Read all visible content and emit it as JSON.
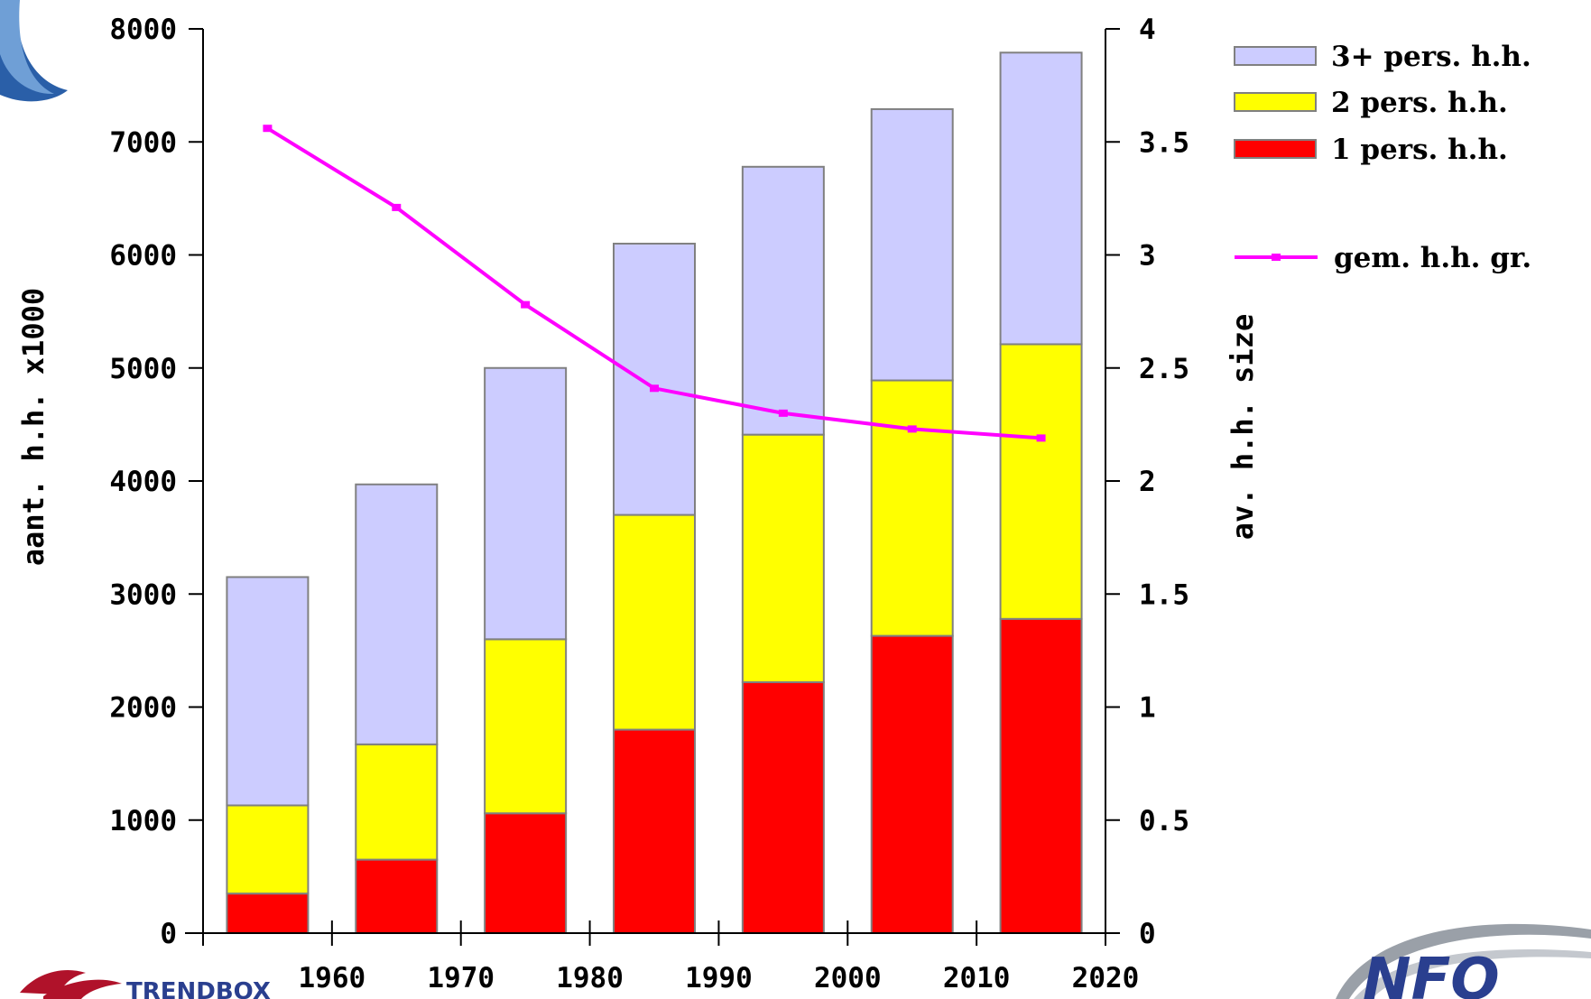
{
  "colors": {
    "p1": "#ff0000",
    "p2": "#ffff00",
    "p3": "#ccccff",
    "line": "#ff00ff",
    "bar_stroke": "#808080",
    "axis": "#000000"
  },
  "logos": {
    "bottom_right_text": "NFO",
    "bottom_left_text": "TRENDBOX"
  },
  "chart_data": {
    "type": "bar",
    "stacked": true,
    "categories": [
      "1955",
      "1965",
      "1975",
      "1985",
      "1995",
      "2005",
      "2015"
    ],
    "x_tick_labels": [
      "1960",
      "1970",
      "1980",
      "1990",
      "2000",
      "2010",
      "2020"
    ],
    "x_tick_values": [
      1960,
      1970,
      1980,
      1990,
      2000,
      2010,
      2020
    ],
    "xlim": [
      1950,
      2020
    ],
    "ylabel": "aant. h.h. x1000",
    "ylim": [
      0,
      8000
    ],
    "y_ticks": [
      0,
      1000,
      2000,
      3000,
      4000,
      5000,
      6000,
      7000,
      8000
    ],
    "y2label": "av. h.h. size",
    "y2lim": [
      0,
      4
    ],
    "y2_ticks": [
      "0",
      "0.5",
      "1",
      "1.5",
      "2",
      "2.5",
      "3",
      "3.5",
      "4"
    ],
    "legend_position": "top-right",
    "series": [
      {
        "name": "1 pers. h.h.",
        "color": "#ff0000",
        "axis": "left",
        "values": [
          350,
          650,
          1060,
          1800,
          2220,
          2630,
          2780
        ]
      },
      {
        "name": "2 pers. h.h.",
        "color": "#ffff00",
        "axis": "left",
        "values": [
          780,
          1020,
          1540,
          1900,
          2190,
          2260,
          2430
        ]
      },
      {
        "name": "3+ pers. h.h.",
        "color": "#ccccff",
        "axis": "left",
        "values": [
          2020,
          2300,
          2400,
          2400,
          2370,
          2400,
          2580
        ]
      },
      {
        "name": "gem. h.h. gr.",
        "color": "#ff00ff",
        "axis": "right",
        "type": "line",
        "values": [
          3.56,
          3.21,
          2.78,
          2.41,
          2.3,
          2.23,
          2.19
        ]
      }
    ],
    "legend_order": [
      "3+ pers. h.h.",
      "2 pers. h.h.",
      "1 pers. h.h.",
      "gem. h.h. gr."
    ]
  }
}
